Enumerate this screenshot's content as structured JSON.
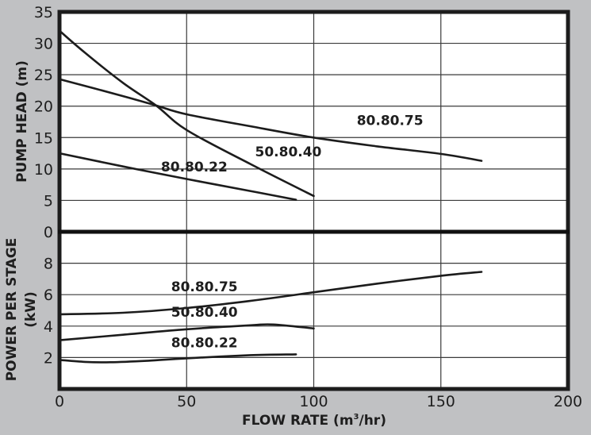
{
  "chart_data": [
    {
      "panel": "top",
      "type": "line",
      "title": "",
      "xlabel": "FLOW RATE (m³/hr)",
      "ylabel": "PUMP HEAD (m)",
      "xlim": [
        0,
        200
      ],
      "ylim": [
        0,
        35
      ],
      "x_ticks": [
        0,
        50,
        100,
        150,
        200
      ],
      "y_ticks": [
        0,
        5,
        10,
        15,
        20,
        25,
        30,
        35
      ],
      "grid": true,
      "legend": "inline labels",
      "series": [
        {
          "name": "80.80.75",
          "x": [
            0,
            25,
            38,
            50,
            75,
            100,
            125,
            150,
            166
          ],
          "y": [
            24.3,
            21.6,
            20.1,
            18.7,
            16.8,
            15.0,
            13.6,
            12.4,
            11.3
          ],
          "label_pos": [
            130,
            17
          ]
        },
        {
          "name": "50.80.40",
          "x": [
            0,
            10,
            25,
            38,
            50,
            75,
            100
          ],
          "y": [
            32.0,
            28.5,
            23.7,
            20.1,
            16.2,
            10.8,
            5.7
          ],
          "label_pos": [
            90,
            12
          ]
        },
        {
          "name": "80.80.22",
          "x": [
            0,
            25,
            50,
            75,
            93
          ],
          "y": [
            12.5,
            10.4,
            8.4,
            6.5,
            5.1
          ],
          "label_pos": [
            53,
            9.6
          ]
        }
      ]
    },
    {
      "panel": "bottom",
      "type": "line",
      "title": "",
      "xlabel": "FLOW RATE (m³/hr)",
      "ylabel": "POWER PER STAGE (kW)",
      "xlim": [
        0,
        200
      ],
      "ylim": [
        0,
        10
      ],
      "x_ticks": [
        0,
        50,
        100,
        150,
        200
      ],
      "y_ticks": [
        2,
        4,
        6,
        8
      ],
      "grid": true,
      "legend": "inline labels",
      "series": [
        {
          "name": "80.80.75",
          "x": [
            0,
            25,
            50,
            75,
            100,
            125,
            150,
            166
          ],
          "y": [
            4.75,
            4.85,
            5.15,
            5.6,
            6.15,
            6.7,
            7.2,
            7.45
          ],
          "label_pos": [
            57,
            6.2
          ]
        },
        {
          "name": "50.80.40",
          "x": [
            0,
            25,
            50,
            75,
            84,
            100
          ],
          "y": [
            3.1,
            3.45,
            3.8,
            4.05,
            4.1,
            3.85
          ],
          "label_pos": [
            57,
            4.6
          ]
        },
        {
          "name": "80.80.22",
          "x": [
            0,
            10,
            20,
            35,
            50,
            75,
            93
          ],
          "y": [
            1.85,
            1.72,
            1.7,
            1.8,
            1.95,
            2.15,
            2.2
          ],
          "label_pos": [
            57,
            2.65
          ]
        }
      ]
    }
  ],
  "labels": {
    "y_top_title": "PUMP HEAD (m)",
    "y_bottom_title_line1": "POWER PER STAGE",
    "y_bottom_title_line2": "(kW)",
    "x_title_main": "FLOW RATE (m",
    "x_title_sup": "3",
    "x_title_end": "/hr)"
  },
  "colors": {
    "background": "#c0c1c3",
    "plot_background": "#ffffff",
    "line": "#1c1c1c"
  }
}
